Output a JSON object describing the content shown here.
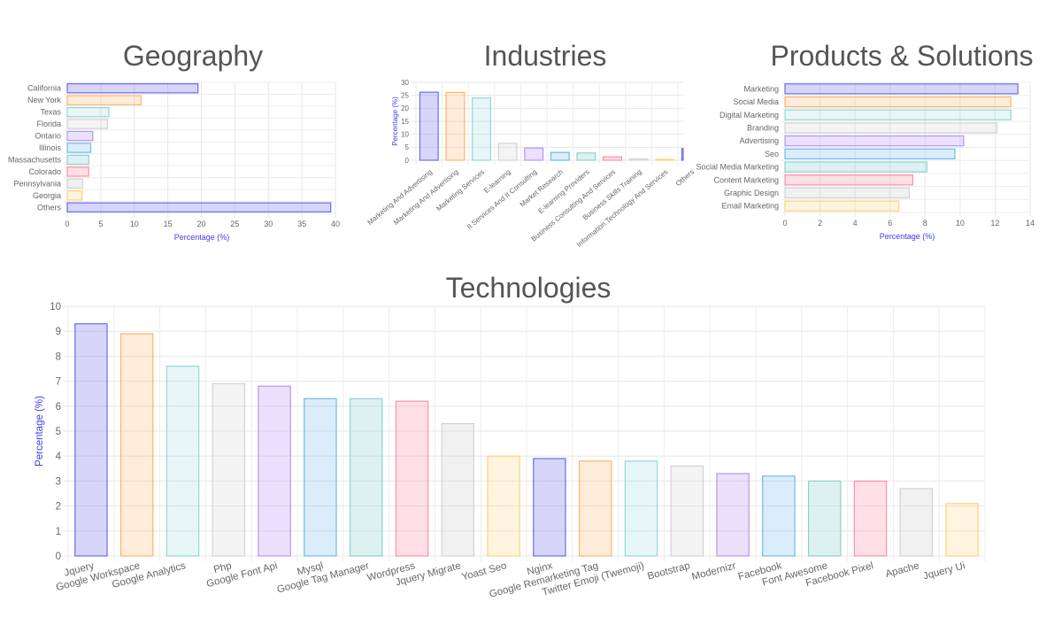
{
  "palette": [
    {
      "stroke": "#6b6bf2",
      "fill": "rgba(107,107,242,0.28)"
    },
    {
      "stroke": "#ffb36b",
      "fill": "rgba(255,179,107,0.25)"
    },
    {
      "stroke": "#93d8d8",
      "fill": "rgba(147,216,216,0.22)"
    },
    {
      "stroke": "#d2d2d2",
      "fill": "rgba(210,210,210,0.25)"
    },
    {
      "stroke": "#b794f6",
      "fill": "rgba(183,148,246,0.28)"
    },
    {
      "stroke": "#6fb9ee",
      "fill": "rgba(111,185,238,0.25)"
    },
    {
      "stroke": "#8fd0cc",
      "fill": "rgba(143,208,204,0.3)"
    },
    {
      "stroke": "#ff8fa6",
      "fill": "rgba(255,143,166,0.28)"
    },
    {
      "stroke": "#d2d2d2",
      "fill": "rgba(210,210,210,0.3)"
    },
    {
      "stroke": "#ffd27a",
      "fill": "rgba(255,210,122,0.25)"
    }
  ],
  "chart_data": [
    {
      "id": "geography",
      "type": "bar",
      "orientation": "horizontal",
      "title": "Geography",
      "xlabel": "Percentage (%)",
      "ylabel": "",
      "categories": [
        "California",
        "New York",
        "Texas",
        "Florida",
        "Ontario",
        "Illinois",
        "Massachusetts",
        "Colorado",
        "Pennsylvania",
        "Georgia",
        "Others"
      ],
      "values": [
        19.5,
        11,
        6.2,
        6,
        3.8,
        3.5,
        3.2,
        3.2,
        2.3,
        2.2,
        39.3
      ],
      "xlim": [
        0,
        40
      ],
      "ticks": [
        "0",
        "5",
        "10",
        "15",
        "20",
        "25",
        "30",
        "35",
        "40"
      ],
      "grid": true
    },
    {
      "id": "industries",
      "type": "bar",
      "orientation": "vertical",
      "title": "Industries",
      "xlabel": "",
      "ylabel": "Percentage (%)",
      "categories": [
        "Marketing And Advertising",
        "Marketing And Advertising",
        "Marketing Services",
        "E-learning",
        "It Services And It Consulting",
        "Market Research",
        "E-learning Providers",
        "Business Consulting And Services",
        "Business Skills Training",
        "Information Technology And Services",
        "Others"
      ],
      "values": [
        26.2,
        26.1,
        24,
        6.5,
        4.7,
        3,
        2.8,
        1.3,
        0.5,
        0.3,
        4.5
      ],
      "ylim": [
        0,
        30
      ],
      "ticks": [
        "0",
        "5",
        "10",
        "15",
        "20",
        "25",
        "30"
      ],
      "grid": true
    },
    {
      "id": "products",
      "type": "bar",
      "orientation": "horizontal",
      "title": "Products & Solutions",
      "xlabel": "Percentage (%)",
      "ylabel": "",
      "categories": [
        "Marketing",
        "Social Media",
        "Digital Marketing",
        "Branding",
        "Advertising",
        "Seo",
        "Social Media Marketing",
        "Content Marketing",
        "Graphic Design",
        "Email Marketing"
      ],
      "values": [
        13.3,
        12.9,
        12.9,
        12.1,
        10.2,
        9.7,
        8.1,
        7.3,
        7.1,
        6.5
      ],
      "xlim": [
        0,
        14
      ],
      "ticks": [
        "0",
        "2",
        "4",
        "6",
        "8",
        "10",
        "12",
        "14"
      ],
      "grid": true
    },
    {
      "id": "technologies",
      "type": "bar",
      "orientation": "vertical",
      "title": "Technologies",
      "xlabel": "",
      "ylabel": "Percentage (%)",
      "categories": [
        "Jquery",
        "Google Workspace",
        "Google Analytics",
        "Php",
        "Google Font Api",
        "Mysql",
        "Google Tag Manager",
        "Wordpress",
        "Jquery Migrate",
        "Yoast Seo",
        "Nginx",
        "Google Remarketing Tag",
        "Twitter Emoji (Twemoji)",
        "Bootstrap",
        "Modernizr",
        "Facebook",
        "Font Awesome",
        "Facebook Pixel",
        "Apache",
        "Jquery Ui"
      ],
      "values": [
        9.3,
        8.9,
        7.6,
        6.9,
        6.8,
        6.3,
        6.3,
        6.2,
        5.3,
        4.0,
        3.9,
        3.8,
        3.8,
        3.6,
        3.3,
        3.2,
        3.0,
        3.0,
        2.7,
        2.1
      ],
      "ylim": [
        0,
        10
      ],
      "ticks": [
        "0",
        "1",
        "2",
        "3",
        "4",
        "5",
        "6",
        "7",
        "8",
        "9",
        "10"
      ],
      "grid": true
    }
  ]
}
